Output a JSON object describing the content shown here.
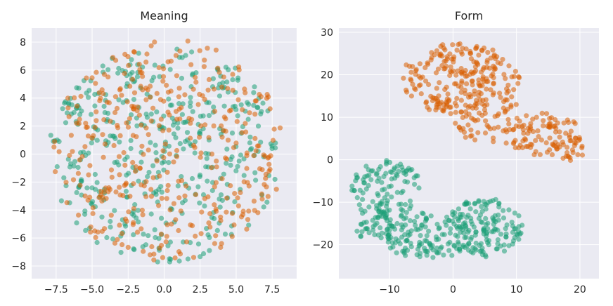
{
  "chart_data": [
    {
      "type": "scatter",
      "title": "Meaning",
      "xlabel": "",
      "ylabel": "",
      "xlim": [
        -9.2,
        9.2
      ],
      "ylim": [
        -8.9,
        9.0
      ],
      "xticks": [
        -7.5,
        -5.0,
        -2.5,
        0.0,
        2.5,
        5.0,
        7.5
      ],
      "xtick_labels": [
        "−7.5",
        "−5.0",
        "−2.5",
        "0.0",
        "2.5",
        "5.0",
        "7.5"
      ],
      "yticks": [
        -8,
        -6,
        -4,
        -2,
        0,
        2,
        4,
        6,
        8
      ],
      "ytick_labels": [
        "−8",
        "−6",
        "−4",
        "−2",
        "0",
        "2",
        "4",
        "6",
        "8"
      ],
      "grid": true,
      "series": [
        {
          "name": "green",
          "color": "#1b9e77",
          "cloud": {
            "kind": "disc",
            "cx": 0.0,
            "cy": 0.0,
            "rx": 8.0,
            "ry": 7.8,
            "n": 430,
            "seed": 11
          }
        },
        {
          "name": "orange",
          "color": "#d95f02",
          "cloud": {
            "kind": "disc",
            "cx": 0.3,
            "cy": 0.2,
            "rx": 8.0,
            "ry": 8.0,
            "n": 400,
            "seed": 29
          }
        }
      ]
    },
    {
      "type": "scatter",
      "title": "Form",
      "xlabel": "",
      "ylabel": "",
      "xlim": [
        -18,
        23
      ],
      "ylim": [
        -28,
        31
      ],
      "xticks": [
        -10,
        0,
        10,
        20
      ],
      "xtick_labels": [
        "−10",
        "0",
        "10",
        "20"
      ],
      "yticks": [
        -20,
        -10,
        0,
        10,
        20,
        30
      ],
      "yticks_labels_note": "",
      "ytick_labels": [
        "−20",
        "−10",
        "0",
        "10",
        "20",
        "30"
      ],
      "grid": true,
      "series": [
        {
          "name": "orange",
          "color": "#d95f02",
          "cloud": {
            "kind": "blobs",
            "seed": 47,
            "blobs": [
              {
                "cx": 1.0,
                "cy": 19.0,
                "rx": 9.5,
                "ry": 8.5,
                "n": 230
              },
              {
                "cx": 5.0,
                "cy": 10.0,
                "rx": 6.0,
                "ry": 6.0,
                "n": 60
              },
              {
                "cx": 14.0,
                "cy": 6.0,
                "rx": 6.5,
                "ry": 5.0,
                "n": 95
              },
              {
                "cx": 18.5,
                "cy": 2.0,
                "rx": 2.5,
                "ry": 2.5,
                "n": 20
              }
            ]
          }
        },
        {
          "name": "green",
          "color": "#1b9e77",
          "cloud": {
            "kind": "blobs",
            "seed": 83,
            "blobs": [
              {
                "cx": -10.5,
                "cy": -7.0,
                "rx": 5.5,
                "ry": 7.0,
                "n": 110
              },
              {
                "cx": -4.0,
                "cy": -18.0,
                "rx": 7.0,
                "ry": 5.5,
                "n": 130
              },
              {
                "cx": 5.0,
                "cy": -16.0,
                "rx": 6.0,
                "ry": 7.0,
                "n": 150
              },
              {
                "cx": -12.0,
                "cy": -15.0,
                "rx": 3.5,
                "ry": 5.0,
                "n": 40
              }
            ]
          }
        }
      ]
    }
  ]
}
